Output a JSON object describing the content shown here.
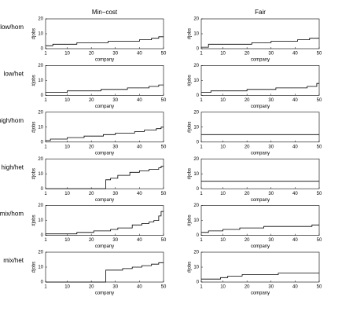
{
  "chart_data": [
    {
      "type": "line",
      "title": "Min−cost",
      "row_label": "low/hom",
      "xlabel": "company",
      "ylabel": "#jobs",
      "xlim": [
        1,
        50
      ],
      "ylim": [
        0,
        20
      ],
      "xticks": [
        1,
        10,
        20,
        30,
        40,
        50
      ],
      "yticks": [
        0,
        10,
        20
      ],
      "color": "#000000",
      "x": [
        1,
        4,
        4,
        14,
        14,
        27,
        27,
        40,
        40,
        45,
        45,
        48,
        48,
        50
      ],
      "values": [
        2,
        2,
        3,
        3,
        4,
        4,
        5,
        5,
        6,
        6,
        7,
        7,
        8,
        8
      ]
    },
    {
      "type": "line",
      "title": "Fair",
      "xlabel": "company",
      "ylabel": "#jobs",
      "xlim": [
        1,
        50
      ],
      "ylim": [
        0,
        20
      ],
      "xticks": [
        1,
        10,
        20,
        30,
        40,
        50
      ],
      "yticks": [
        0,
        10,
        20
      ],
      "color": "#000000",
      "x": [
        1,
        4,
        4,
        22,
        22,
        30,
        30,
        41,
        41,
        46,
        46,
        50
      ],
      "values": [
        1,
        1,
        3,
        3,
        4,
        4,
        5,
        5,
        6,
        6,
        7,
        7
      ]
    },
    {
      "type": "line",
      "row_label": "low/het",
      "xlabel": "company",
      "ylabel": "#jobs",
      "xlim": [
        1,
        50
      ],
      "ylim": [
        0,
        20
      ],
      "xticks": [
        1,
        10,
        20,
        30,
        40,
        50
      ],
      "yticks": [
        0,
        10,
        20
      ],
      "color": "#000000",
      "x": [
        1,
        10,
        10,
        24,
        24,
        35,
        35,
        44,
        44,
        48,
        48,
        50
      ],
      "values": [
        2,
        2,
        3,
        3,
        4,
        4,
        5,
        5,
        6,
        6,
        7,
        7
      ]
    },
    {
      "type": "line",
      "xlabel": "company",
      "ylabel": "#jobs",
      "xlim": [
        1,
        50
      ],
      "ylim": [
        0,
        20
      ],
      "xticks": [
        1,
        10,
        20,
        30,
        40,
        50
      ],
      "yticks": [
        0,
        10,
        20
      ],
      "color": "#000000",
      "x": [
        1,
        5,
        5,
        20,
        20,
        32,
        32,
        45,
        45,
        49,
        49,
        50
      ],
      "values": [
        2,
        2,
        3,
        3,
        4,
        4,
        5,
        5,
        6,
        6,
        8,
        8
      ]
    },
    {
      "type": "line",
      "row_label": "high/hom",
      "xlabel": "company",
      "ylabel": "#jobs",
      "xlim": [
        1,
        50
      ],
      "ylim": [
        0,
        20
      ],
      "xticks": [
        1,
        10,
        20,
        30,
        40,
        50
      ],
      "yticks": [
        0,
        10,
        20
      ],
      "color": "#000000",
      "x": [
        1,
        3,
        3,
        10,
        10,
        17,
        17,
        25,
        25,
        30,
        30,
        38,
        38,
        42,
        42,
        47,
        47,
        49,
        49,
        50
      ],
      "values": [
        1,
        1,
        2,
        2,
        3,
        3,
        4,
        4,
        5,
        5,
        6,
        6,
        7,
        7,
        8,
        8,
        9,
        9,
        10,
        10
      ]
    },
    {
      "type": "line",
      "xlabel": "company",
      "ylabel": "#jobs",
      "xlim": [
        1,
        50
      ],
      "ylim": [
        0,
        20
      ],
      "xticks": [
        1,
        10,
        20,
        30,
        40,
        50
      ],
      "yticks": [
        0,
        10,
        20
      ],
      "color": "#000000",
      "x": [
        1,
        50
      ],
      "values": [
        5,
        5
      ]
    },
    {
      "type": "line",
      "row_label": "high/het",
      "xlabel": "company",
      "ylabel": "#jobs",
      "xlim": [
        1,
        50
      ],
      "ylim": [
        0,
        20
      ],
      "xticks": [
        1,
        10,
        20,
        30,
        40,
        50
      ],
      "yticks": [
        0,
        10,
        20
      ],
      "color": "#000000",
      "x": [
        1,
        26,
        26,
        28,
        28,
        31,
        31,
        36,
        36,
        40,
        40,
        44,
        44,
        48,
        48,
        49,
        49,
        50
      ],
      "values": [
        0,
        0,
        6,
        6,
        7,
        7,
        9,
        9,
        11,
        11,
        12,
        12,
        13,
        13,
        14,
        14,
        15,
        15
      ]
    },
    {
      "type": "line",
      "xlabel": "company",
      "ylabel": "#jobs",
      "xlim": [
        1,
        50
      ],
      "ylim": [
        0,
        20
      ],
      "xticks": [
        1,
        10,
        20,
        30,
        40,
        50
      ],
      "yticks": [
        0,
        10,
        20
      ],
      "color": "#000000",
      "x": [
        1,
        50
      ],
      "values": [
        5,
        5
      ]
    },
    {
      "type": "line",
      "row_label": "mix/hom",
      "xlabel": "company",
      "ylabel": "#jobs",
      "xlim": [
        1,
        50
      ],
      "ylim": [
        0,
        20
      ],
      "xticks": [
        1,
        10,
        20,
        30,
        40,
        50
      ],
      "yticks": [
        0,
        10,
        20
      ],
      "color": "#000000",
      "x": [
        1,
        14,
        14,
        21,
        21,
        28,
        28,
        31,
        31,
        37,
        37,
        41,
        41,
        44,
        44,
        46,
        46,
        48,
        48,
        49,
        49,
        50
      ],
      "values": [
        1,
        1,
        2,
        2,
        3,
        3,
        4,
        4,
        5,
        5,
        7,
        7,
        8,
        8,
        9,
        9,
        10,
        10,
        13,
        13,
        16,
        16
      ]
    },
    {
      "type": "line",
      "xlabel": "company",
      "ylabel": "#jobs",
      "xlim": [
        1,
        50
      ],
      "ylim": [
        0,
        20
      ],
      "xticks": [
        1,
        10,
        20,
        30,
        40,
        50
      ],
      "yticks": [
        0,
        10,
        20
      ],
      "color": "#000000",
      "x": [
        1,
        4,
        4,
        10,
        10,
        17,
        17,
        27,
        27,
        47,
        47,
        50
      ],
      "values": [
        2,
        2,
        3,
        3,
        4,
        4,
        5,
        5,
        6,
        6,
        7,
        7
      ]
    },
    {
      "type": "line",
      "row_label": "mix/het",
      "xlabel": "company",
      "ylabel": "#jobs",
      "xlim": [
        1,
        50
      ],
      "ylim": [
        0,
        20
      ],
      "xticks": [
        1,
        10,
        20,
        30,
        40,
        50
      ],
      "yticks": [
        0,
        10,
        20
      ],
      "color": "#000000",
      "x": [
        1,
        26,
        26,
        33,
        33,
        37,
        37,
        41,
        41,
        45,
        45,
        48,
        48,
        50
      ],
      "values": [
        0,
        0,
        8,
        8,
        9,
        9,
        10,
        10,
        11,
        11,
        12,
        12,
        13,
        13
      ]
    },
    {
      "type": "line",
      "xlabel": "company",
      "ylabel": "#jobs",
      "xlim": [
        1,
        50
      ],
      "ylim": [
        0,
        20
      ],
      "xticks": [
        1,
        10,
        20,
        30,
        40,
        50
      ],
      "yticks": [
        0,
        10,
        20
      ],
      "color": "#000000",
      "x": [
        1,
        9,
        9,
        12,
        12,
        18,
        18,
        33,
        33,
        50
      ],
      "values": [
        2,
        2,
        3,
        3,
        4,
        4,
        5,
        5,
        6,
        6
      ]
    }
  ]
}
